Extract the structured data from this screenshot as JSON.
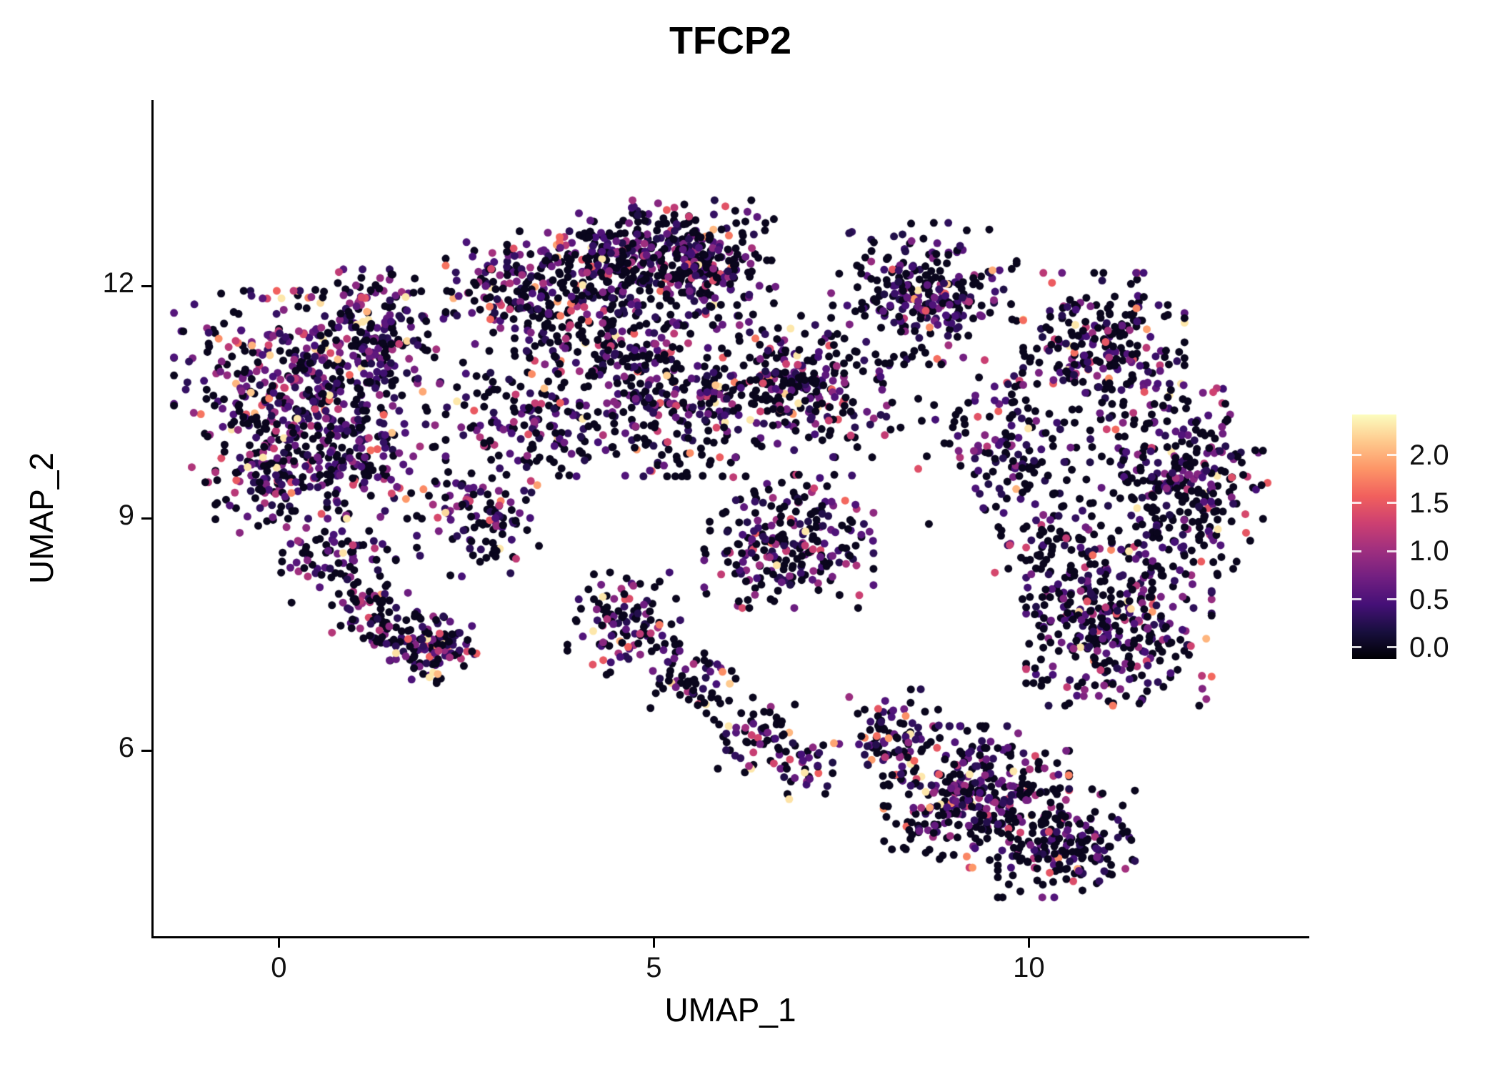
{
  "chart_data": {
    "type": "scatter",
    "title": "TFCP2",
    "xlabel": "UMAP_1",
    "ylabel": "UMAP_2",
    "xlim": [
      -1.67,
      13.71
    ],
    "ylim": [
      3.6,
      14.4
    ],
    "xticks": [
      {
        "value": 0,
        "label": "0"
      },
      {
        "value": 5,
        "label": "5"
      },
      {
        "value": 10,
        "label": "10"
      }
    ],
    "yticks": [
      {
        "value": 6,
        "label": "6"
      },
      {
        "value": 9,
        "label": "9"
      },
      {
        "value": 12,
        "label": "12"
      }
    ],
    "grid": false,
    "background": "#ffffff",
    "point_radius": 5.5,
    "seed": 20240613,
    "expression_floor": 0.2,
    "expression_cap": 2.3,
    "colorbar": {
      "position": "right",
      "colormap": "magma",
      "vmin": -0.12,
      "vmax": 2.42,
      "ticks": [
        {
          "value": 2.0,
          "label": "2.0"
        },
        {
          "value": 1.5,
          "label": "1.5"
        },
        {
          "value": 1.0,
          "label": "1.0"
        },
        {
          "value": 0.5,
          "label": "0.5"
        },
        {
          "value": 0.0,
          "label": "0.0"
        }
      ],
      "stops": [
        "#000004",
        "#180f3e",
        "#451077",
        "#721f81",
        "#9f2f7f",
        "#cd4071",
        "#f1605d",
        "#fd9567",
        "#fec98d",
        "#fcfdbf"
      ]
    },
    "clusters": [
      {
        "cx": 0.0,
        "cy": 10.7,
        "rx": 1.3,
        "ry": 1.15,
        "n": 340,
        "p0": 0.4,
        "vs": 0.62
      },
      {
        "cx": 1.3,
        "cy": 11.3,
        "rx": 1.0,
        "ry": 0.85,
        "n": 240,
        "p0": 0.42,
        "vs": 0.6
      },
      {
        "cx": 0.9,
        "cy": 9.8,
        "rx": 1.1,
        "ry": 0.75,
        "n": 200,
        "p0": 0.42,
        "vs": 0.6
      },
      {
        "cx": -0.2,
        "cy": 9.4,
        "rx": 0.6,
        "ry": 0.6,
        "n": 70,
        "p0": 0.5,
        "vs": 0.5
      },
      {
        "cx": 0.7,
        "cy": 8.5,
        "rx": 0.8,
        "ry": 0.55,
        "n": 80,
        "p0": 0.52,
        "vs": 0.5
      },
      {
        "cx": 1.3,
        "cy": 7.7,
        "rx": 0.55,
        "ry": 0.5,
        "n": 80,
        "p0": 0.5,
        "vs": 0.55
      },
      {
        "cx": 2.1,
        "cy": 7.3,
        "rx": 0.5,
        "ry": 0.4,
        "n": 110,
        "p0": 0.42,
        "vs": 0.65
      },
      {
        "cx": 2.7,
        "cy": 9.0,
        "rx": 0.8,
        "ry": 0.7,
        "n": 110,
        "p0": 0.5,
        "vs": 0.55
      },
      {
        "cx": 3.3,
        "cy": 10.3,
        "rx": 1.0,
        "ry": 0.8,
        "n": 150,
        "p0": 0.52,
        "vs": 0.55
      },
      {
        "cx": 3.3,
        "cy": 11.9,
        "rx": 1.0,
        "ry": 0.75,
        "n": 200,
        "p0": 0.52,
        "vs": 0.55
      },
      {
        "cx": 4.5,
        "cy": 12.3,
        "rx": 0.9,
        "ry": 0.7,
        "n": 220,
        "p0": 0.53,
        "vs": 0.55
      },
      {
        "cx": 5.6,
        "cy": 12.3,
        "rx": 0.95,
        "ry": 0.75,
        "n": 280,
        "p0": 0.53,
        "vs": 0.55
      },
      {
        "cx": 4.5,
        "cy": 11.2,
        "rx": 1.1,
        "ry": 0.6,
        "n": 150,
        "p0": 0.55,
        "vs": 0.5
      },
      {
        "cx": 5.3,
        "cy": 10.4,
        "rx": 1.2,
        "ry": 0.8,
        "n": 240,
        "p0": 0.55,
        "vs": 0.55
      },
      {
        "cx": 7.0,
        "cy": 10.7,
        "rx": 1.2,
        "ry": 0.85,
        "n": 260,
        "p0": 0.55,
        "vs": 0.55
      },
      {
        "cx": 6.8,
        "cy": 8.7,
        "rx": 1.05,
        "ry": 0.8,
        "n": 250,
        "p0": 0.5,
        "vs": 0.6
      },
      {
        "cx": 8.6,
        "cy": 11.9,
        "rx": 1.15,
        "ry": 0.85,
        "n": 260,
        "p0": 0.58,
        "vs": 0.5
      },
      {
        "cx": 9.6,
        "cy": 10.0,
        "rx": 1.0,
        "ry": 1.0,
        "n": 130,
        "p0": 0.6,
        "vs": 0.5
      },
      {
        "cx": 11.0,
        "cy": 11.2,
        "rx": 1.0,
        "ry": 0.9,
        "n": 250,
        "p0": 0.55,
        "vs": 0.55
      },
      {
        "cx": 12.0,
        "cy": 9.5,
        "rx": 1.1,
        "ry": 1.15,
        "n": 330,
        "p0": 0.55,
        "vs": 0.55
      },
      {
        "cx": 11.2,
        "cy": 7.6,
        "rx": 1.15,
        "ry": 0.95,
        "n": 320,
        "p0": 0.55,
        "vs": 0.55
      },
      {
        "cx": 10.3,
        "cy": 8.7,
        "rx": 0.75,
        "ry": 0.95,
        "n": 110,
        "p0": 0.6,
        "vs": 0.5
      },
      {
        "cx": 9.3,
        "cy": 5.4,
        "rx": 1.15,
        "ry": 0.85,
        "n": 360,
        "p0": 0.52,
        "vs": 0.58
      },
      {
        "cx": 10.5,
        "cy": 4.8,
        "rx": 0.85,
        "ry": 0.65,
        "n": 180,
        "p0": 0.55,
        "vs": 0.5
      },
      {
        "cx": 8.1,
        "cy": 6.2,
        "rx": 0.65,
        "ry": 0.55,
        "n": 80,
        "p0": 0.55,
        "vs": 0.55
      },
      {
        "cx": 4.6,
        "cy": 7.6,
        "rx": 0.7,
        "ry": 0.65,
        "n": 110,
        "p0": 0.5,
        "vs": 0.55
      },
      {
        "cx": 5.5,
        "cy": 6.9,
        "rx": 0.55,
        "ry": 0.5,
        "n": 60,
        "p0": 0.55,
        "vs": 0.5
      },
      {
        "cx": 6.3,
        "cy": 6.2,
        "rx": 0.55,
        "ry": 0.45,
        "n": 55,
        "p0": 0.55,
        "vs": 0.5
      },
      {
        "cx": 7.0,
        "cy": 5.8,
        "rx": 0.4,
        "ry": 0.4,
        "n": 40,
        "p0": 0.55,
        "vs": 0.5
      }
    ]
  }
}
